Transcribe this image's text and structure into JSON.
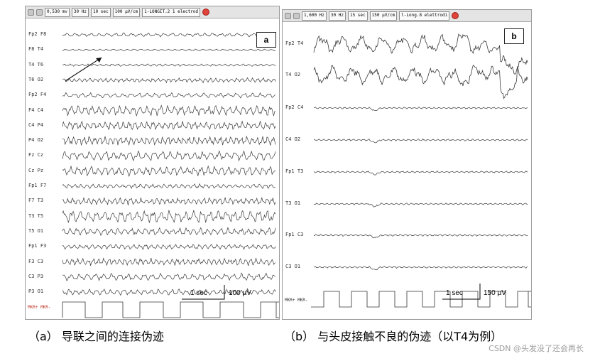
{
  "panel_a": {
    "tag": "a",
    "toolbar": [
      "0,530 mv",
      "30 Hz",
      "10 sec",
      "100 µV/cm",
      "1-LONGIT.2 1 electrod"
    ],
    "channels": [
      "Fp2  F8",
      "F8  T4",
      "T4  T6",
      "T6  O2",
      "Fp2  F4",
      "F4  C4",
      "C4  P4",
      "P4  O2",
      "Fz  Cz",
      "Cz  Pz",
      "Fp1  F7",
      "F7  T3",
      "T3  T5",
      "T5  O1",
      "Fp1  F3",
      "F3  C3",
      "C3  P3",
      "P3  O1"
    ],
    "scale_time": "1 sec",
    "scale_amp": "100 µV",
    "marker_label": "MKR+ MKR-"
  },
  "panel_b": {
    "tag": "b",
    "toolbar": [
      "1,600 Hz",
      "30 Hz",
      "15 sec",
      "150 µV/cm",
      "l-Long.8 elettrodi"
    ],
    "channels": [
      "Fp2 T4",
      "T4 O2",
      "Fp2 C4",
      "C4 O2",
      "Fp1 T3",
      "T3 O1",
      "Fp1 C3",
      "C3 O1"
    ],
    "scale_time": "1 sec",
    "scale_amp": "150 µV",
    "marker_label": "MKR+ MKR-"
  },
  "captions": {
    "a": "（a） 导联之间的连接伪迹",
    "b": "（b） 与头皮接触不良的伪迹（以T4为例）"
  },
  "watermark": "CSDN @头发没了还会再长",
  "colors": {
    "trace": "#3a3a3a",
    "marker_label": "#c0392b",
    "arrow": "#111111"
  },
  "icons": [
    "toolbar-app-icon",
    "marker-icon",
    "stop-icon"
  ]
}
